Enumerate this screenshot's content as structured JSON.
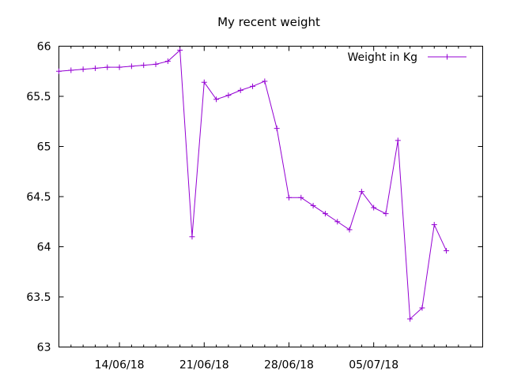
{
  "chart_data": {
    "type": "line",
    "title": "My recent weight",
    "xlabel": "",
    "ylabel": "",
    "ylim": [
      63,
      66
    ],
    "xlim": [
      "2018-06-09",
      "2018-07-14"
    ],
    "grid": false,
    "legend_position": "top-right",
    "y_ticks": [
      "63",
      "63.5",
      "64",
      "64.5",
      "65",
      "65.5",
      "66"
    ],
    "x_ticks": [
      {
        "label": "14/06/18",
        "date": "2018-06-14"
      },
      {
        "label": "21/06/18",
        "date": "2018-06-21"
      },
      {
        "label": "28/06/18",
        "date": "2018-06-28"
      },
      {
        "label": "05/07/18",
        "date": "2018-07-05"
      }
    ],
    "series": [
      {
        "name": "Weight in Kg",
        "color": "#9400d3",
        "points": [
          {
            "x": "2018-06-09",
            "y": 65.75
          },
          {
            "x": "2018-06-10",
            "y": 65.76
          },
          {
            "x": "2018-06-11",
            "y": 65.77
          },
          {
            "x": "2018-06-12",
            "y": 65.78
          },
          {
            "x": "2018-06-13",
            "y": 65.79
          },
          {
            "x": "2018-06-14",
            "y": 65.79
          },
          {
            "x": "2018-06-15",
            "y": 65.8
          },
          {
            "x": "2018-06-16",
            "y": 65.81
          },
          {
            "x": "2018-06-17",
            "y": 65.82
          },
          {
            "x": "2018-06-18",
            "y": 65.85
          },
          {
            "x": "2018-06-19",
            "y": 65.96
          },
          {
            "x": "2018-06-20",
            "y": 64.1
          },
          {
            "x": "2018-06-21",
            "y": 65.64
          },
          {
            "x": "2018-06-22",
            "y": 65.47
          },
          {
            "x": "2018-06-23",
            "y": 65.51
          },
          {
            "x": "2018-06-24",
            "y": 65.56
          },
          {
            "x": "2018-06-25",
            "y": 65.6
          },
          {
            "x": "2018-06-26",
            "y": 65.65
          },
          {
            "x": "2018-06-27",
            "y": 65.18
          },
          {
            "x": "2018-06-28",
            "y": 64.49
          },
          {
            "x": "2018-06-29",
            "y": 64.49
          },
          {
            "x": "2018-06-30",
            "y": 64.41
          },
          {
            "x": "2018-07-01",
            "y": 64.33
          },
          {
            "x": "2018-07-02",
            "y": 64.25
          },
          {
            "x": "2018-07-03",
            "y": 64.17
          },
          {
            "x": "2018-07-04",
            "y": 64.55
          },
          {
            "x": "2018-07-05",
            "y": 64.39
          },
          {
            "x": "2018-07-06",
            "y": 64.33
          },
          {
            "x": "2018-07-07",
            "y": 65.06
          },
          {
            "x": "2018-07-08",
            "y": 63.28
          },
          {
            "x": "2018-07-09",
            "y": 63.39
          },
          {
            "x": "2018-07-10",
            "y": 64.22
          },
          {
            "x": "2018-07-11",
            "y": 63.96
          }
        ]
      }
    ]
  }
}
